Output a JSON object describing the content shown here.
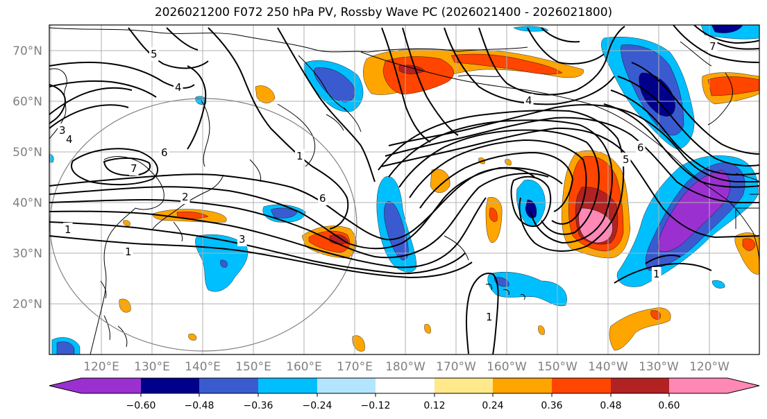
{
  "title": "2026021200 F072 250 hPa PV, Rossby Wave PC (2026021400 - 2026021800)",
  "colors": {
    "pv_contour": "#000000",
    "coast": "#000000",
    "grid": "#b0b0b0",
    "circle": "#808080",
    "neg_060": "#9b30d0",
    "neg_048": "#00008b",
    "neg_036": "#3a5bd0",
    "neg_024": "#00bfff",
    "neg_012": "#b3e5ff",
    "neutral": "#ffffff",
    "pos_012": "#ffe98a",
    "pos_024": "#ffa500",
    "pos_036": "#ff4500",
    "pos_048": "#b22222",
    "pos_060": "#ff88b5"
  },
  "axes": {
    "lat_labels": [
      "70°N",
      "60°N",
      "50°N",
      "40°N",
      "30°N",
      "20°N"
    ],
    "lon_labels": [
      "120°E",
      "130°E",
      "140°E",
      "150°E",
      "160°E",
      "170°E",
      "180°W",
      "170°W",
      "160°W",
      "150°W",
      "140°W",
      "130°W",
      "120°W"
    ]
  },
  "contour_labels": [
    "5",
    "4",
    "3",
    "4",
    "6",
    "7",
    "2",
    "1",
    "1",
    "3",
    "6",
    "4",
    "5",
    "6",
    "1",
    "7",
    "1",
    "1"
  ],
  "colorbar": {
    "labels": [
      "−0.60",
      "−0.48",
      "−0.36",
      "−0.24",
      "−0.12",
      "0.12",
      "0.24",
      "0.36",
      "0.48",
      "0.60"
    ]
  }
}
